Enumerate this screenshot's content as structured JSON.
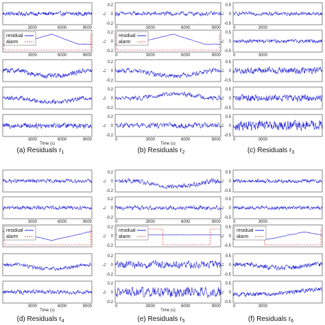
{
  "colors": {
    "residual": "#1f1fd6",
    "alarm": "#e8585a",
    "axis": "#333333"
  },
  "chart_data": [
    {
      "type": "line",
      "caption": "(a) Residuals r",
      "caption_sub": "1",
      "xlim": [
        0,
        9000
      ],
      "xticks": [
        "3000",
        "6000",
        "9000"
      ],
      "xlabel": "Time (s)",
      "legend": {
        "entries": [
          "residual",
          "alarm"
        ],
        "in_panel": 1
      },
      "panels": [
        {
          "ylabel": "",
          "shape": "none",
          "amp": 0.12,
          "noise": 0.35
        },
        {
          "ylabel": "",
          "shape": "tri",
          "amp": 0.7,
          "noise": 0.05,
          "alarm": true
        },
        {
          "ylabel": "",
          "shape": "dip",
          "amp": 0.5,
          "noise": 0.4
        },
        {
          "ylabel": "",
          "shape": "dip",
          "amp": 0.35,
          "noise": 0.35
        },
        {
          "ylabel": "",
          "shape": "none",
          "amp": 0.1,
          "noise": 0.45
        }
      ]
    },
    {
      "type": "line",
      "caption": "(b) Residuals r",
      "caption_sub": "2",
      "xlim": [
        0,
        9000
      ],
      "xticks": [
        "0",
        "3000",
        "6000",
        "9000"
      ],
      "xlabel": "Time (s)",
      "yticks": [
        "0.2",
        "0",
        "-0.2"
      ],
      "legend": {
        "entries": [
          "residual",
          "alarm"
        ],
        "in_panel": 1
      },
      "panels": [
        {
          "ylabel": "r₁",
          "shape": "none",
          "amp": 0.1,
          "noise": 0.35
        },
        {
          "ylabel": "r₂",
          "shape": "tri",
          "amp": 0.7,
          "noise": 0.05,
          "alarm": true
        },
        {
          "ylabel": "r₃",
          "shape": "dip",
          "amp": 0.45,
          "noise": 0.4
        },
        {
          "ylabel": "r₄",
          "shape": "bump",
          "amp": 0.35,
          "noise": 0.35
        },
        {
          "ylabel": "r₅",
          "shape": "none",
          "amp": 0.1,
          "noise": 0.45
        }
      ]
    },
    {
      "type": "line",
      "caption": "(c) Residuals r",
      "caption_sub": "3",
      "xlim": [
        0,
        9000
      ],
      "xticks": [
        "0",
        "3000"
      ],
      "xlabel": "",
      "yticks": [
        "0.5",
        "0",
        "-0.5"
      ],
      "legend": null,
      "panels": [
        {
          "ylabel": "r₁",
          "shape": "none",
          "amp": 0.1,
          "noise": 0.3
        },
        {
          "ylabel": "r₂",
          "shape": "none",
          "amp": 0.1,
          "noise": 0.3
        },
        {
          "ylabel": "r₃",
          "shape": "none",
          "amp": 0.1,
          "noise": 0.55
        },
        {
          "ylabel": "r₄",
          "shape": "none",
          "amp": 0.1,
          "noise": 0.55
        },
        {
          "ylabel": "r₅",
          "shape": "none",
          "amp": 0.1,
          "noise": 0.8
        }
      ]
    },
    {
      "type": "line",
      "caption": "(d) Residuals r",
      "caption_sub": "4",
      "xlim": [
        0,
        9000
      ],
      "xticks": [
        "3000",
        "6000",
        "9000"
      ],
      "xlabel": "Time (s)",
      "legend": {
        "entries": [
          "residual",
          "alarm"
        ],
        "in_panel": 2
      },
      "panels": [
        {
          "ylabel": "",
          "shape": "none",
          "amp": 0.1,
          "noise": 0.3
        },
        {
          "ylabel": "",
          "shape": "none",
          "amp": 0.1,
          "noise": 0.3
        },
        {
          "ylabel": "",
          "shape": "vdip",
          "amp": 0.7,
          "noise": 0.05,
          "alarm": true
        },
        {
          "ylabel": "",
          "shape": "dip",
          "amp": 0.4,
          "noise": 0.3
        },
        {
          "ylabel": "",
          "shape": "none",
          "amp": 0.1,
          "noise": 0.35
        }
      ]
    },
    {
      "type": "line",
      "caption": "(e) Residuals r",
      "caption_sub": "5",
      "xlim": [
        0,
        9000
      ],
      "xticks": [
        "0",
        "3000",
        "6000",
        "9000"
      ],
      "xlabel": "Time (s)",
      "yticks": [
        "0.2",
        "0",
        "-0.2"
      ],
      "legend": {
        "entries": [
          "residual",
          "alarm"
        ],
        "in_panel": 2
      },
      "panels": [
        {
          "ylabel": "r₁",
          "shape": "dip",
          "amp": 0.5,
          "noise": 0.4
        },
        {
          "ylabel": "r₂",
          "shape": "none",
          "amp": 0.1,
          "noise": 0.35
        },
        {
          "ylabel": "r₃",
          "shape": "flat",
          "amp": 0.3,
          "noise": 0.04,
          "alarm": true
        },
        {
          "ylabel": "r₄",
          "shape": "none",
          "amp": 0.1,
          "noise": 0.65
        },
        {
          "ylabel": "r₅",
          "shape": "none",
          "amp": 0.1,
          "noise": 0.85
        }
      ]
    },
    {
      "type": "line",
      "caption": "(f) Residuals r",
      "caption_sub": "6",
      "xlim": [
        0,
        9000
      ],
      "xticks": [
        "0",
        "3000"
      ],
      "xlabel": "",
      "yticks": [
        "0.5",
        "0",
        "-0.5"
      ],
      "legend": {
        "entries": [
          "residual",
          "alarm"
        ],
        "in_panel": 2
      },
      "panels": [
        {
          "ylabel": "r₁",
          "shape": "none",
          "amp": 0.1,
          "noise": 0.3
        },
        {
          "ylabel": "r₂",
          "shape": "none",
          "amp": 0.1,
          "noise": 0.3
        },
        {
          "ylabel": "r₃",
          "shape": "ramp",
          "amp": 0.6,
          "noise": 0.05,
          "alarm": true
        },
        {
          "ylabel": "r₄",
          "shape": "dip",
          "amp": 0.3,
          "noise": 0.4
        },
        {
          "ylabel": "r₅",
          "shape": "ramp2",
          "amp": 0.5,
          "noise": 0.35
        }
      ]
    }
  ]
}
